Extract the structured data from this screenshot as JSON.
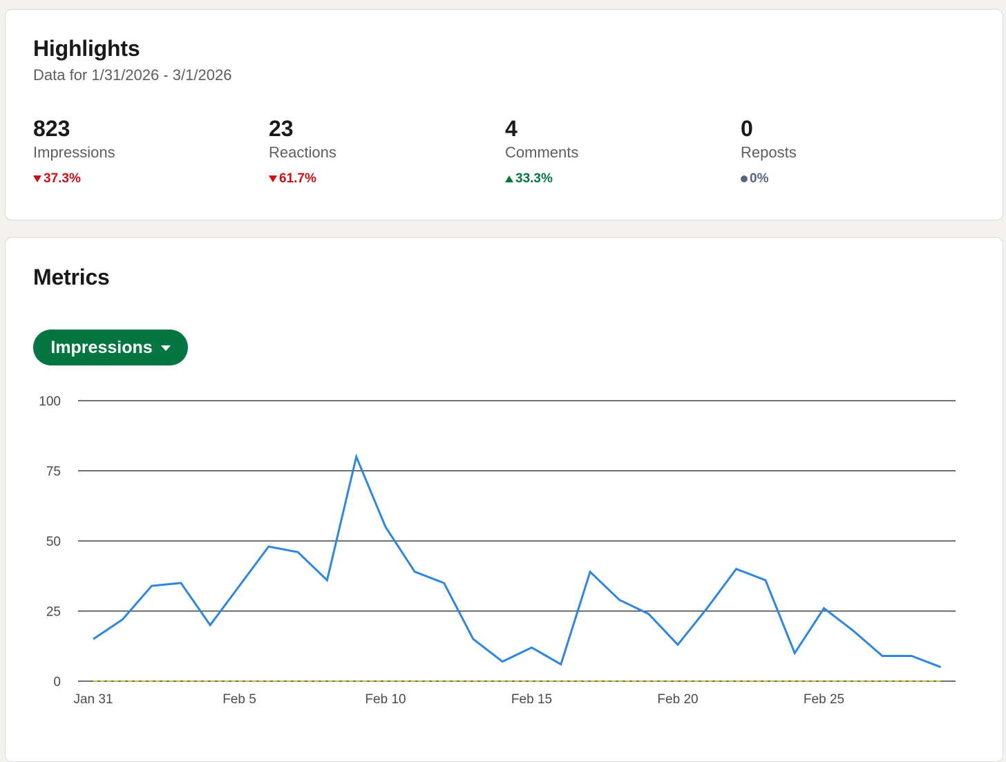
{
  "highlights": {
    "title": "Highlights",
    "subtitle": "Data for 1/31/2026 - 3/1/2026",
    "stats": [
      {
        "value": "823",
        "label": "Impressions",
        "change": "37.3%",
        "direction": "down"
      },
      {
        "value": "23",
        "label": "Reactions",
        "change": "61.7%",
        "direction": "down"
      },
      {
        "value": "4",
        "label": "Comments",
        "change": "33.3%",
        "direction": "up"
      },
      {
        "value": "0",
        "label": "Reposts",
        "change": "0%",
        "direction": "neutral"
      }
    ]
  },
  "metrics": {
    "title": "Metrics",
    "dropdown_label": "Impressions"
  },
  "colors": {
    "accent_green": "#057642",
    "negative_red": "#cc1016",
    "neutral_gray": "#56687a",
    "line_blue": "#2f86de",
    "baseline_dashed": "#b8bd3a"
  },
  "chart_data": {
    "type": "line",
    "x": [
      "Jan 31",
      "Feb 1",
      "Feb 2",
      "Feb 3",
      "Feb 4",
      "Feb 5",
      "Feb 6",
      "Feb 7",
      "Feb 8",
      "Feb 9",
      "Feb 10",
      "Feb 11",
      "Feb 12",
      "Feb 13",
      "Feb 14",
      "Feb 15",
      "Feb 16",
      "Feb 17",
      "Feb 18",
      "Feb 19",
      "Feb 20",
      "Feb 21",
      "Feb 22",
      "Feb 23",
      "Feb 24",
      "Feb 25",
      "Feb 26",
      "Feb 27",
      "Feb 28",
      "Mar 1"
    ],
    "x_tick_labels": [
      "Jan 31",
      "Feb 5",
      "Feb 10",
      "Feb 15",
      "Feb 20",
      "Feb 25"
    ],
    "series": [
      {
        "values": [
          15,
          22,
          34,
          35,
          20,
          34,
          48,
          46,
          36,
          80,
          55,
          39,
          35,
          15,
          7,
          12,
          6,
          39,
          29,
          24,
          13,
          26,
          40,
          36,
          10,
          26,
          18,
          9,
          9,
          5
        ]
      },
      {
        "values": [
          0,
          0,
          0,
          0,
          0,
          0,
          0,
          0,
          0,
          0,
          0,
          0,
          0,
          0,
          0,
          0,
          0,
          0,
          0,
          0,
          0,
          0,
          0,
          0,
          0,
          0,
          0,
          0,
          0,
          0
        ],
        "style": "dashed"
      }
    ],
    "y_ticks": [
      0,
      25,
      50,
      75,
      100
    ],
    "ylim": [
      0,
      100
    ],
    "grid": true
  }
}
